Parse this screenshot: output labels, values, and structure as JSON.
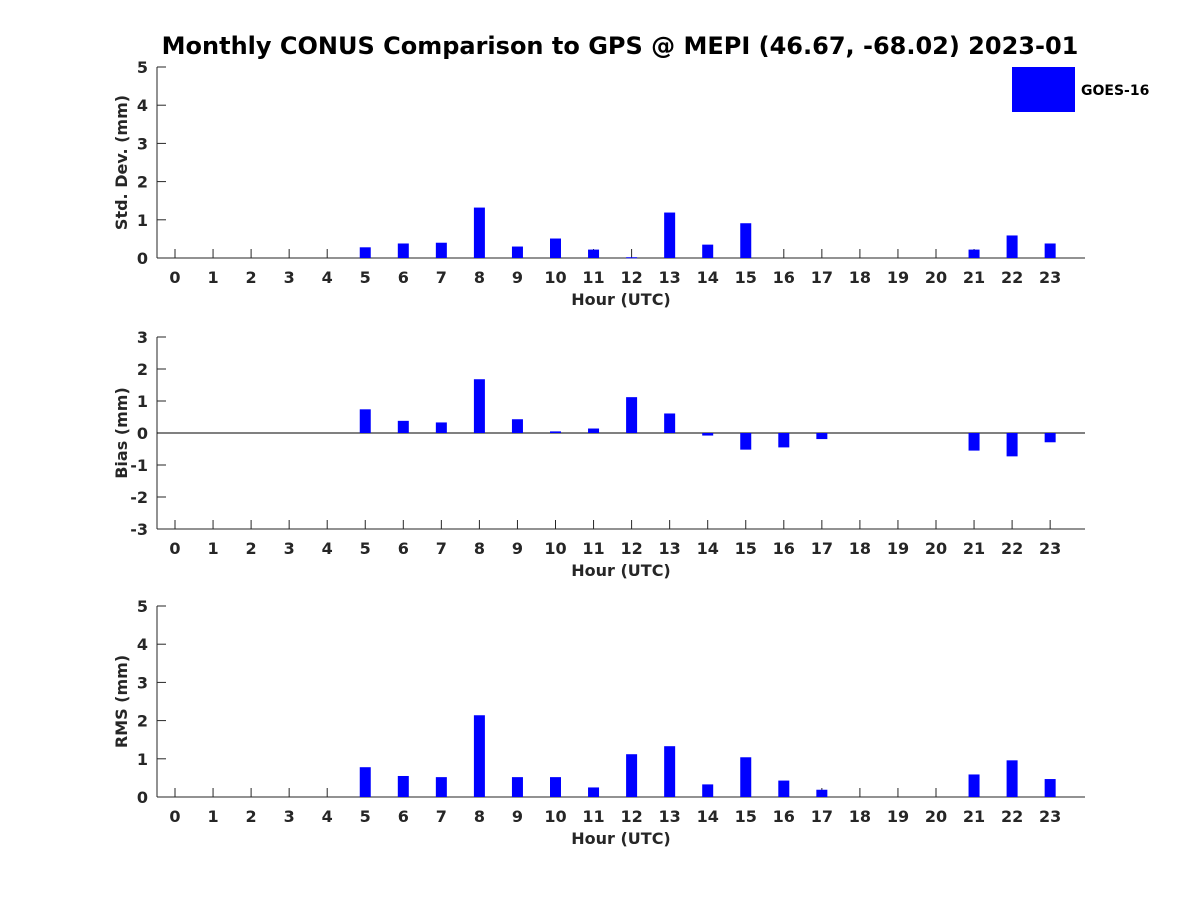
{
  "title": "Monthly CONUS Comparison to GPS @ MEPI (46.67, -68.02) 2023-01",
  "legend": {
    "label": "GOES-16",
    "color": "#0000ff",
    "position": "top-right"
  },
  "chart_data": [
    {
      "type": "bar",
      "xlabel": "Hour (UTC)",
      "ylabel": "Std. Dev. (mm)",
      "ylim": [
        0,
        5
      ],
      "yticks": [
        0,
        1,
        2,
        3,
        4,
        5
      ],
      "categories": [
        "0",
        "1",
        "2",
        "3",
        "4",
        "5",
        "6",
        "7",
        "8",
        "9",
        "10",
        "11",
        "12",
        "13",
        "14",
        "15",
        "16",
        "17",
        "18",
        "19",
        "20",
        "21",
        "22",
        "23"
      ],
      "series": [
        {
          "name": "GOES-16",
          "color": "#0000ff",
          "values": [
            0,
            0,
            0,
            0,
            0,
            0.28,
            0.38,
            0.4,
            1.32,
            0.3,
            0.51,
            0.22,
            0.02,
            1.19,
            0.35,
            0.91,
            0,
            0,
            0,
            0,
            0,
            0.22,
            0.59,
            0.38
          ]
        }
      ],
      "grid": false
    },
    {
      "type": "bar",
      "xlabel": "Hour (UTC)",
      "ylabel": "Bias (mm)",
      "ylim": [
        -3,
        3
      ],
      "yticks": [
        -3,
        -2,
        -1,
        0,
        1,
        2,
        3
      ],
      "categories": [
        "0",
        "1",
        "2",
        "3",
        "4",
        "5",
        "6",
        "7",
        "8",
        "9",
        "10",
        "11",
        "12",
        "13",
        "14",
        "15",
        "16",
        "17",
        "18",
        "19",
        "20",
        "21",
        "22",
        "23"
      ],
      "series": [
        {
          "name": "GOES-16",
          "color": "#0000ff",
          "values": [
            0,
            0,
            0,
            0,
            0,
            0.74,
            0.38,
            0.33,
            1.68,
            0.43,
            0.05,
            0.14,
            1.12,
            0.61,
            -0.08,
            -0.52,
            -0.45,
            -0.19,
            0,
            0,
            0,
            -0.55,
            -0.73,
            -0.29
          ]
        }
      ],
      "grid": false
    },
    {
      "type": "bar",
      "xlabel": "Hour (UTC)",
      "ylabel": "RMS (mm)",
      "ylim": [
        0,
        5
      ],
      "yticks": [
        0,
        1,
        2,
        3,
        4,
        5
      ],
      "categories": [
        "0",
        "1",
        "2",
        "3",
        "4",
        "5",
        "6",
        "7",
        "8",
        "9",
        "10",
        "11",
        "12",
        "13",
        "14",
        "15",
        "16",
        "17",
        "18",
        "19",
        "20",
        "21",
        "22",
        "23"
      ],
      "series": [
        {
          "name": "GOES-16",
          "color": "#0000ff",
          "values": [
            0,
            0,
            0,
            0,
            0,
            0.78,
            0.55,
            0.52,
            2.14,
            0.52,
            0.52,
            0.25,
            1.12,
            1.33,
            0.33,
            1.04,
            0.43,
            0.19,
            0,
            0,
            0,
            0.59,
            0.96,
            0.47
          ]
        }
      ],
      "grid": false
    }
  ]
}
